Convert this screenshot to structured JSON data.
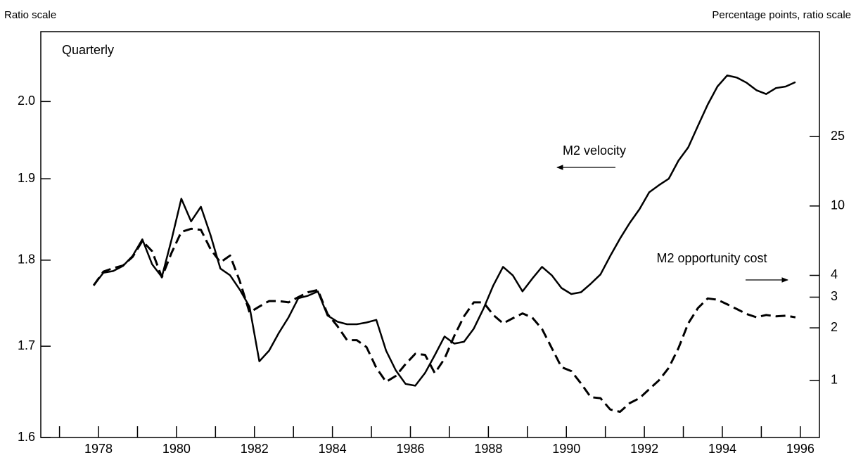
{
  "chart_data": {
    "type": "line",
    "subtitle": "Quarterly",
    "ylabel": "Ratio scale",
    "y2label": "Percentage points, ratio scale",
    "log_scale": true,
    "y2_log_scale": true,
    "xlim": [
      1976.52,
      1996.49
    ],
    "xticks": [
      1978,
      1980,
      1982,
      1984,
      1986,
      1988,
      1990,
      1992,
      1994,
      1996
    ],
    "xminorticks": [
      1977,
      1979,
      1981,
      1983,
      1985,
      1987,
      1989,
      1991,
      1993,
      1995
    ],
    "ylim": [
      1.6,
      2.095
    ],
    "yticks": [
      1.6,
      1.7,
      1.8,
      1.9,
      {
        "value": 2,
        "label": "2.0"
      }
    ],
    "y2lim": [
      0.47,
      100
    ],
    "y2ticks": [
      1,
      2,
      3,
      4,
      10,
      25
    ],
    "x": [
      1977.875,
      1978.125,
      1978.375,
      1978.625,
      1978.875,
      1979.125,
      1979.375,
      1979.625,
      1979.875,
      1980.125,
      1980.375,
      1980.625,
      1980.875,
      1981.125,
      1981.375,
      1981.625,
      1981.875,
      1982.125,
      1982.375,
      1982.625,
      1982.875,
      1983.125,
      1983.375,
      1983.625,
      1983.875,
      1984.125,
      1984.375,
      1984.625,
      1984.875,
      1985.125,
      1985.375,
      1985.625,
      1985.875,
      1986.125,
      1986.375,
      1986.625,
      1986.875,
      1987.125,
      1987.375,
      1987.625,
      1987.875,
      1988.125,
      1988.375,
      1988.625,
      1988.875,
      1989.125,
      1989.375,
      1989.625,
      1989.875,
      1990.125,
      1990.375,
      1990.625,
      1990.875,
      1991.125,
      1991.375,
      1991.625,
      1991.875,
      1992.125,
      1992.375,
      1992.625,
      1992.875,
      1993.125,
      1993.375,
      1993.625,
      1993.875,
      1994.125,
      1994.375,
      1994.625,
      1994.875,
      1995.125,
      1995.375,
      1995.625,
      1995.875
    ],
    "series": [
      {
        "name": "M2 velocity",
        "color": "#000000",
        "style": "solid",
        "axis": "y",
        "values": [
          1.77,
          1.785,
          1.787,
          1.793,
          1.805,
          1.825,
          1.795,
          1.78,
          1.825,
          1.875,
          1.847,
          1.865,
          1.83,
          1.79,
          1.782,
          1.765,
          1.745,
          1.683,
          1.695,
          1.715,
          1.733,
          1.755,
          1.758,
          1.763,
          1.735,
          1.728,
          1.725,
          1.725,
          1.727,
          1.73,
          1.695,
          1.673,
          1.658,
          1.656,
          1.67,
          1.69,
          1.711,
          1.703,
          1.705,
          1.72,
          1.743,
          1.77,
          1.792,
          1.782,
          1.763,
          1.778,
          1.792,
          1.782,
          1.767,
          1.76,
          1.762,
          1.772,
          1.783,
          1.805,
          1.826,
          1.845,
          1.862,
          1.883,
          1.892,
          1.9,
          1.923,
          1.94,
          1.968,
          1.996,
          2.02,
          2.035,
          2.032,
          2.025,
          2.015,
          2.01,
          2.018,
          2.02,
          2.026
        ]
      },
      {
        "name": "M2 opportunity cost",
        "color": "#000000",
        "style": "dashed",
        "axis": "y2",
        "values": [
          3.5,
          4.2,
          4.4,
          4.55,
          5.1,
          6.3,
          5.5,
          3.9,
          5.4,
          7.1,
          7.4,
          7.3,
          5.65,
          4.75,
          5.2,
          3.7,
          2.45,
          2.65,
          2.85,
          2.85,
          2.8,
          3.0,
          3.2,
          3.3,
          2.4,
          2.05,
          1.7,
          1.7,
          1.55,
          1.18,
          0.98,
          1.06,
          1.24,
          1.42,
          1.4,
          1.1,
          1.33,
          1.8,
          2.33,
          2.8,
          2.8,
          2.37,
          2.12,
          2.27,
          2.42,
          2.29,
          1.97,
          1.53,
          1.19,
          1.13,
          0.96,
          0.8,
          0.79,
          0.68,
          0.66,
          0.74,
          0.79,
          0.89,
          1.0,
          1.18,
          1.53,
          2.12,
          2.6,
          2.95,
          2.9,
          2.73,
          2.56,
          2.4,
          2.3,
          2.37,
          2.33,
          2.35,
          2.3
        ]
      }
    ]
  }
}
